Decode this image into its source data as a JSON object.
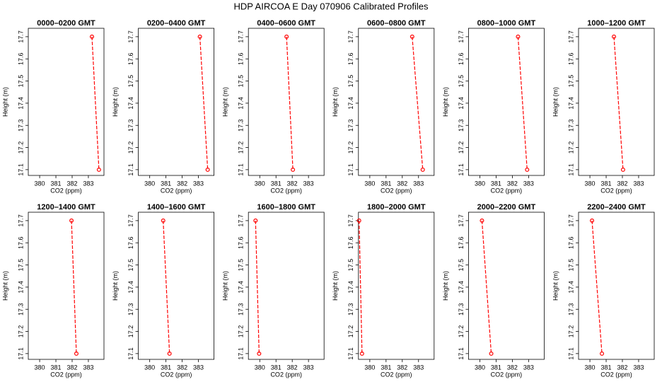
{
  "title": "HDP AIRCOA E  Day 070906  Calibrated Profiles",
  "chart_data": [
    {
      "type": "line",
      "title": "0000–0200 GMT",
      "xlabel": "CO2 (ppm)",
      "ylabel": "Height (m)",
      "xlim": [
        379.3,
        383.96
      ],
      "xticks": [
        380,
        381,
        382,
        383
      ],
      "ylim": [
        17.074,
        17.738
      ],
      "yticks": [
        17.1,
        17.2,
        17.3,
        17.4,
        17.5,
        17.6,
        17.7
      ],
      "series": [
        {
          "color": "#ff0000",
          "x": [
            383.22,
            383.65
          ],
          "y": [
            17.7,
            17.1
          ]
        }
      ]
    },
    {
      "type": "line",
      "title": "0200–0400 GMT",
      "xlabel": "CO2 (ppm)",
      "ylabel": "Height (m)",
      "xlim": [
        379.3,
        383.96
      ],
      "xticks": [
        380,
        381,
        382,
        383
      ],
      "ylim": [
        17.074,
        17.738
      ],
      "yticks": [
        17.1,
        17.2,
        17.3,
        17.4,
        17.5,
        17.6,
        17.7
      ],
      "series": [
        {
          "color": "#ff0000",
          "x": [
            383.09,
            383.57
          ],
          "y": [
            17.7,
            17.1
          ]
        }
      ]
    },
    {
      "type": "line",
      "title": "0400–0600 GMT",
      "xlabel": "CO2 (ppm)",
      "ylabel": "Height (m)",
      "xlim": [
        379.3,
        383.96
      ],
      "xticks": [
        380,
        381,
        382,
        383
      ],
      "ylim": [
        17.074,
        17.738
      ],
      "yticks": [
        17.1,
        17.2,
        17.3,
        17.4,
        17.5,
        17.6,
        17.7
      ],
      "series": [
        {
          "color": "#ff0000",
          "x": [
            381.65,
            382.04
          ],
          "y": [
            17.7,
            17.1
          ]
        }
      ]
    },
    {
      "type": "line",
      "title": "0600–0800 GMT",
      "xlabel": "CO2 (ppm)",
      "ylabel": "Height (m)",
      "xlim": [
        379.3,
        383.96
      ],
      "xticks": [
        380,
        381,
        382,
        383
      ],
      "ylim": [
        17.074,
        17.738
      ],
      "yticks": [
        17.1,
        17.2,
        17.3,
        17.4,
        17.5,
        17.6,
        17.7
      ],
      "series": [
        {
          "color": "#ff0000",
          "x": [
            382.61,
            383.26
          ],
          "y": [
            17.7,
            17.1
          ]
        }
      ]
    },
    {
      "type": "line",
      "title": "0800–1000 GMT",
      "xlabel": "CO2 (ppm)",
      "ylabel": "Height (m)",
      "xlim": [
        379.3,
        383.96
      ],
      "xticks": [
        380,
        381,
        382,
        383
      ],
      "ylim": [
        17.074,
        17.738
      ],
      "yticks": [
        17.1,
        17.2,
        17.3,
        17.4,
        17.5,
        17.6,
        17.7
      ],
      "series": [
        {
          "color": "#ff0000",
          "x": [
            382.35,
            382.91
          ],
          "y": [
            17.7,
            17.1
          ]
        }
      ]
    },
    {
      "type": "line",
      "title": "1000–1200 GMT",
      "xlabel": "CO2 (ppm)",
      "ylabel": "Height (m)",
      "xlim": [
        379.3,
        383.96
      ],
      "xticks": [
        380,
        381,
        382,
        383
      ],
      "ylim": [
        17.074,
        17.738
      ],
      "yticks": [
        17.1,
        17.2,
        17.3,
        17.4,
        17.5,
        17.6,
        17.7
      ],
      "series": [
        {
          "color": "#ff0000",
          "x": [
            381.48,
            382.04
          ],
          "y": [
            17.7,
            17.1
          ]
        }
      ]
    },
    {
      "type": "line",
      "title": "1200–1400 GMT",
      "xlabel": "CO2 (ppm)",
      "ylabel": "Height (m)",
      "xlim": [
        379.3,
        383.96
      ],
      "xticks": [
        380,
        381,
        382,
        383
      ],
      "ylim": [
        17.074,
        17.738
      ],
      "yticks": [
        17.1,
        17.2,
        17.3,
        17.4,
        17.5,
        17.6,
        17.7
      ],
      "series": [
        {
          "color": "#ff0000",
          "x": [
            381.96,
            382.26
          ],
          "y": [
            17.7,
            17.1
          ]
        }
      ]
    },
    {
      "type": "line",
      "title": "1400–1600 GMT",
      "xlabel": "CO2 (ppm)",
      "ylabel": "Height (m)",
      "xlim": [
        379.3,
        383.96
      ],
      "xticks": [
        380,
        381,
        382,
        383
      ],
      "ylim": [
        17.074,
        17.738
      ],
      "yticks": [
        17.1,
        17.2,
        17.3,
        17.4,
        17.5,
        17.6,
        17.7
      ],
      "series": [
        {
          "color": "#ff0000",
          "x": [
            380.83,
            381.22
          ],
          "y": [
            17.7,
            17.1
          ]
        }
      ]
    },
    {
      "type": "line",
      "title": "1600–1800 GMT",
      "xlabel": "CO2 (ppm)",
      "ylabel": "Height (m)",
      "xlim": [
        379.3,
        383.96
      ],
      "xticks": [
        380,
        381,
        382,
        383
      ],
      "ylim": [
        17.074,
        17.738
      ],
      "yticks": [
        17.1,
        17.2,
        17.3,
        17.4,
        17.5,
        17.6,
        17.7
      ],
      "series": [
        {
          "color": "#ff0000",
          "x": [
            379.74,
            379.96
          ],
          "y": [
            17.7,
            17.1
          ]
        }
      ]
    },
    {
      "type": "line",
      "title": "1800–2000 GMT",
      "xlabel": "CO2 (ppm)",
      "ylabel": "Height (m)",
      "xlim": [
        379.3,
        383.96
      ],
      "xticks": [
        380,
        381,
        382,
        383
      ],
      "ylim": [
        17.074,
        17.738
      ],
      "yticks": [
        17.1,
        17.2,
        17.3,
        17.4,
        17.5,
        17.6,
        17.7
      ],
      "series": [
        {
          "color": "#ff0000",
          "x": [
            379.34,
            379.52
          ],
          "y": [
            17.7,
            17.1
          ]
        }
      ]
    },
    {
      "type": "line",
      "title": "2000–2200 GMT",
      "xlabel": "CO2 (ppm)",
      "ylabel": "Height (m)",
      "xlim": [
        379.3,
        383.96
      ],
      "xticks": [
        380,
        381,
        382,
        383
      ],
      "ylim": [
        17.074,
        17.738
      ],
      "yticks": [
        17.1,
        17.2,
        17.3,
        17.4,
        17.5,
        17.6,
        17.7
      ],
      "series": [
        {
          "color": "#ff0000",
          "x": [
            380.13,
            380.7
          ],
          "y": [
            17.7,
            17.1
          ]
        }
      ]
    },
    {
      "type": "line",
      "title": "2200–2400 GMT",
      "xlabel": "CO2 (ppm)",
      "ylabel": "Height (m)",
      "xlim": [
        379.3,
        383.96
      ],
      "xticks": [
        380,
        381,
        382,
        383
      ],
      "ylim": [
        17.074,
        17.738
      ],
      "yticks": [
        17.1,
        17.2,
        17.3,
        17.4,
        17.5,
        17.6,
        17.7
      ],
      "series": [
        {
          "color": "#ff0000",
          "x": [
            380.13,
            380.74
          ],
          "y": [
            17.7,
            17.1
          ]
        }
      ]
    }
  ]
}
